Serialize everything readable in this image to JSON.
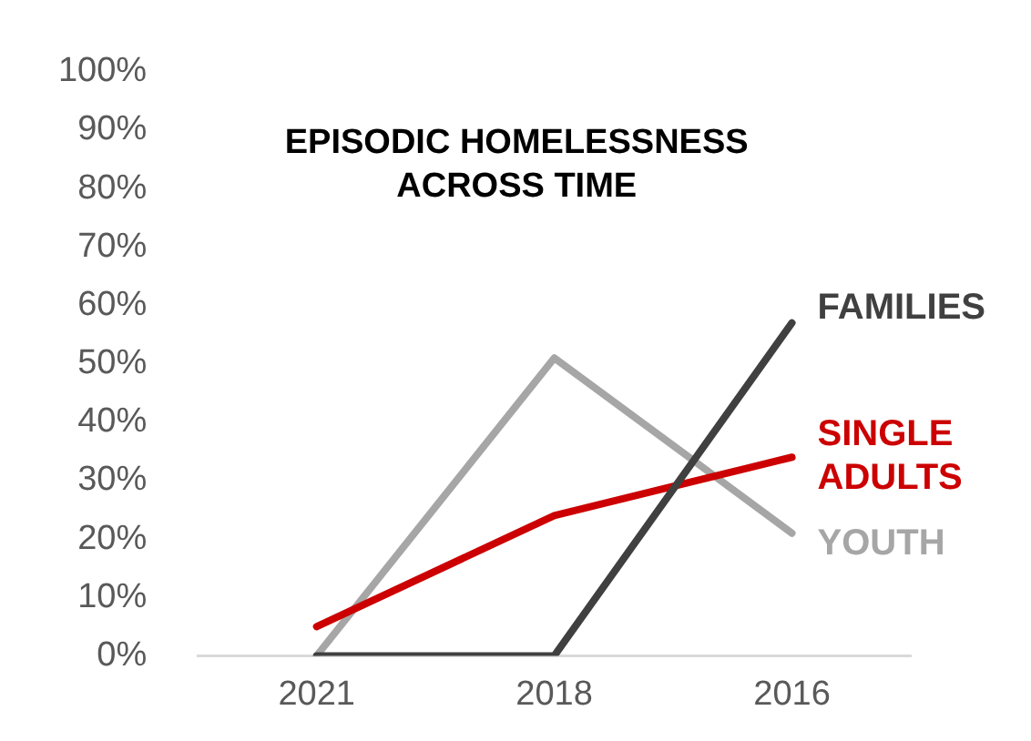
{
  "chart_data": {
    "type": "line",
    "title": "EPISODIC HOMELESSNESS ACROSS TIME",
    "categories": [
      "2021",
      "2018",
      "2016"
    ],
    "series": [
      {
        "name": "FAMILIES",
        "color": "#404040",
        "values": [
          0,
          0,
          57
        ]
      },
      {
        "name": "SINGLE ADULTS",
        "color": "#cc0000",
        "values": [
          5,
          24,
          34
        ]
      },
      {
        "name": "YOUTH",
        "color": "#a6a6a6",
        "values": [
          0,
          51,
          21
        ]
      }
    ],
    "ylim": [
      0,
      100
    ],
    "yticks": [
      {
        "value": 0,
        "label": "0%"
      },
      {
        "value": 10,
        "label": "10%"
      },
      {
        "value": 20,
        "label": "20%"
      },
      {
        "value": 30,
        "label": "30%"
      },
      {
        "value": 40,
        "label": "40%"
      },
      {
        "value": 50,
        "label": "50%"
      },
      {
        "value": 60,
        "label": "60%"
      },
      {
        "value": 70,
        "label": "70%"
      },
      {
        "value": 80,
        "label": "80%"
      },
      {
        "value": 90,
        "label": "90%"
      },
      {
        "value": 100,
        "label": "100%"
      }
    ],
    "grid": false,
    "legend": false,
    "marker": "none",
    "line_style": "solid"
  }
}
